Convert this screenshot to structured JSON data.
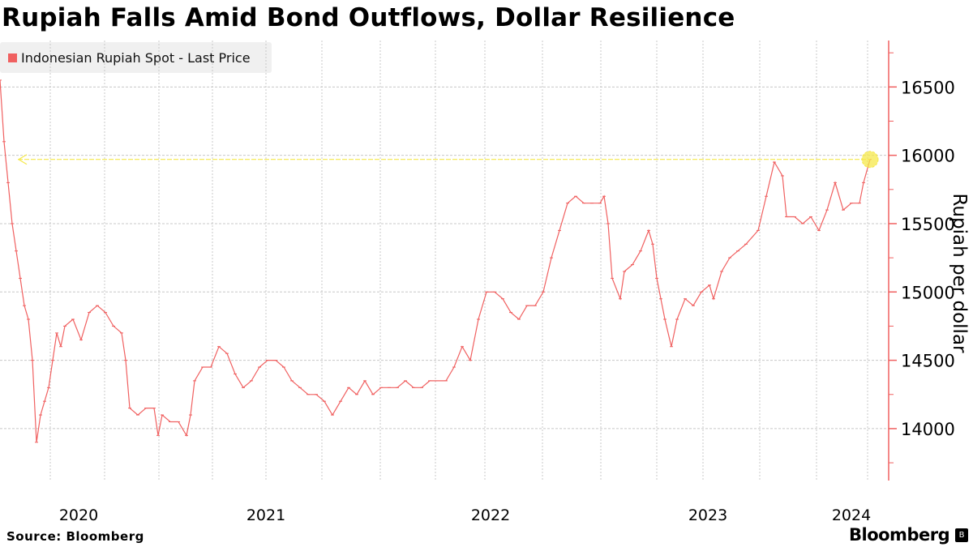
{
  "title": "Rupiah Falls Amid Bond Outflows, Dollar Resilience",
  "source": "Source:  Bloomberg",
  "brand": "Bloomberg",
  "colors": {
    "series": "#f06060",
    "highlight": "#f5e84a",
    "grid": "#c8c8c8",
    "axis": "#f06060"
  },
  "chart_data": {
    "type": "line",
    "title": "Rupiah Falls Amid Bond Outflows, Dollar Resilience",
    "xlabel": "",
    "ylabel": "Rupiah per dollar",
    "legend": {
      "label": "Indonesian Rupiah Spot - Last Price",
      "placement": "top-left"
    },
    "grid": true,
    "ylim": [
      13620,
      16840
    ],
    "xlim": [
      0,
      1096
    ],
    "yticks": [
      14000,
      14500,
      15000,
      15500,
      16000,
      16500
    ],
    "xtick_labels": [
      {
        "label": "2020",
        "at": 97
      },
      {
        "label": "2021",
        "at": 328
      },
      {
        "label": "2022",
        "at": 605
      },
      {
        "label": "2023",
        "at": 873
      },
      {
        "label": "2024",
        "at": 1050
      }
    ],
    "x_gridlines": [
      62,
      129,
      196,
      262,
      328,
      397,
      469,
      537,
      598,
      669,
      741,
      810,
      867,
      937,
      1007,
      1070
    ],
    "x_unit": "trading-day index",
    "highlight_level": 15970,
    "series": [
      {
        "name": "Indonesian Rupiah Spot - Last Price",
        "x": [
          0,
          5,
          10,
          15,
          20,
          25,
          30,
          35,
          40,
          45,
          50,
          55,
          60,
          65,
          70,
          75,
          80,
          90,
          100,
          110,
          120,
          130,
          140,
          150,
          155,
          160,
          170,
          180,
          190,
          195,
          200,
          210,
          220,
          230,
          235,
          240,
          250,
          260,
          270,
          280,
          290,
          300,
          310,
          320,
          330,
          340,
          350,
          360,
          370,
          380,
          390,
          400,
          410,
          420,
          430,
          440,
          450,
          460,
          470,
          480,
          490,
          500,
          510,
          520,
          530,
          550,
          560,
          570,
          580,
          590,
          600,
          610,
          620,
          630,
          640,
          650,
          660,
          670,
          680,
          690,
          700,
          710,
          720,
          730,
          740,
          745,
          750,
          755,
          765,
          770,
          780,
          790,
          800,
          805,
          810,
          815,
          820,
          828,
          835,
          845,
          855,
          865,
          875,
          880,
          890,
          900,
          910,
          920,
          935,
          945,
          955,
          965,
          970,
          980,
          990,
          1000,
          1010,
          1020,
          1030,
          1040,
          1050,
          1060,
          1065,
          1073
        ],
        "values": [
          16550,
          16100,
          15800,
          15500,
          15300,
          15100,
          14900,
          14800,
          14500,
          13900,
          14100,
          14200,
          14300,
          14500,
          14700,
          14600,
          14750,
          14800,
          14650,
          14850,
          14900,
          14850,
          14750,
          14700,
          14500,
          14150,
          14100,
          14150,
          14150,
          13950,
          14100,
          14050,
          14050,
          13950,
          14100,
          14350,
          14450,
          14450,
          14600,
          14550,
          14400,
          14300,
          14350,
          14450,
          14500,
          14500,
          14450,
          14350,
          14300,
          14250,
          14250,
          14200,
          14100,
          14200,
          14300,
          14250,
          14350,
          14250,
          14300,
          14300,
          14300,
          14350,
          14300,
          14300,
          14350,
          14350,
          14450,
          14600,
          14500,
          14800,
          15000,
          15000,
          14950,
          14850,
          14800,
          14900,
          14900,
          15000,
          15250,
          15450,
          15650,
          15700,
          15650,
          15650,
          15650,
          15700,
          15500,
          15100,
          14950,
          15150,
          15200,
          15300,
          15450,
          15350,
          15100,
          14950,
          14800,
          14600,
          14800,
          14950,
          14900,
          15000,
          15050,
          14950,
          15150,
          15250,
          15300,
          15350,
          15450,
          15700,
          15950,
          15850,
          15550,
          15550,
          15500,
          15550,
          15450,
          15600,
          15800,
          15600,
          15650,
          15650,
          15800,
          15970
        ]
      }
    ]
  }
}
